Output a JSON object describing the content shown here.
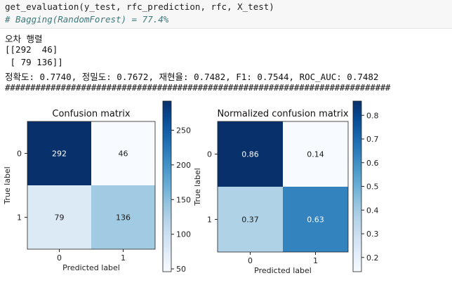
{
  "code": {
    "line1": "get_evaluation(y_test, rfc_prediction, rfc, X_test)",
    "line2": "# Bagging(RandomForest) = 77.4%"
  },
  "output": {
    "heading": "오차 행렬",
    "matrix_row1": "[[292  46]",
    "matrix_row2": " [ 79 136]]",
    "metrics": "정확도: 0.7740, 정밀도: 0.7672, 재현율: 0.7482, F1: 0.7544, ROC_AUC: 0.7482",
    "separator": "############################################################################"
  },
  "chart_data": [
    {
      "type": "heatmap",
      "title": "Confusion matrix",
      "xlabel": "Predicted label",
      "ylabel": "True label",
      "x_ticks": [
        "0",
        "1"
      ],
      "y_ticks": [
        "0",
        "1"
      ],
      "values": [
        [
          292,
          46
        ],
        [
          79,
          136
        ]
      ],
      "labels": [
        [
          "292",
          "46"
        ],
        [
          "79",
          "136"
        ]
      ],
      "colormap": "Blues",
      "vmin": 46,
      "vmax": 292,
      "colorbar_ticks": [
        50,
        100,
        150,
        200,
        250
      ]
    },
    {
      "type": "heatmap",
      "title": "Normalized confusion matrix",
      "xlabel": "Predicted label",
      "ylabel": "True label",
      "x_ticks": [
        "0",
        "1"
      ],
      "y_ticks": [
        "0",
        "1"
      ],
      "values": [
        [
          0.86,
          0.14
        ],
        [
          0.37,
          0.63
        ]
      ],
      "labels": [
        [
          "0.86",
          "0.14"
        ],
        [
          "0.37",
          "0.63"
        ]
      ],
      "colormap": "Blues",
      "vmin": 0.14,
      "vmax": 0.86,
      "colorbar_ticks": [
        0.2,
        0.3,
        0.4,
        0.5,
        0.6,
        0.7,
        0.8
      ]
    }
  ]
}
